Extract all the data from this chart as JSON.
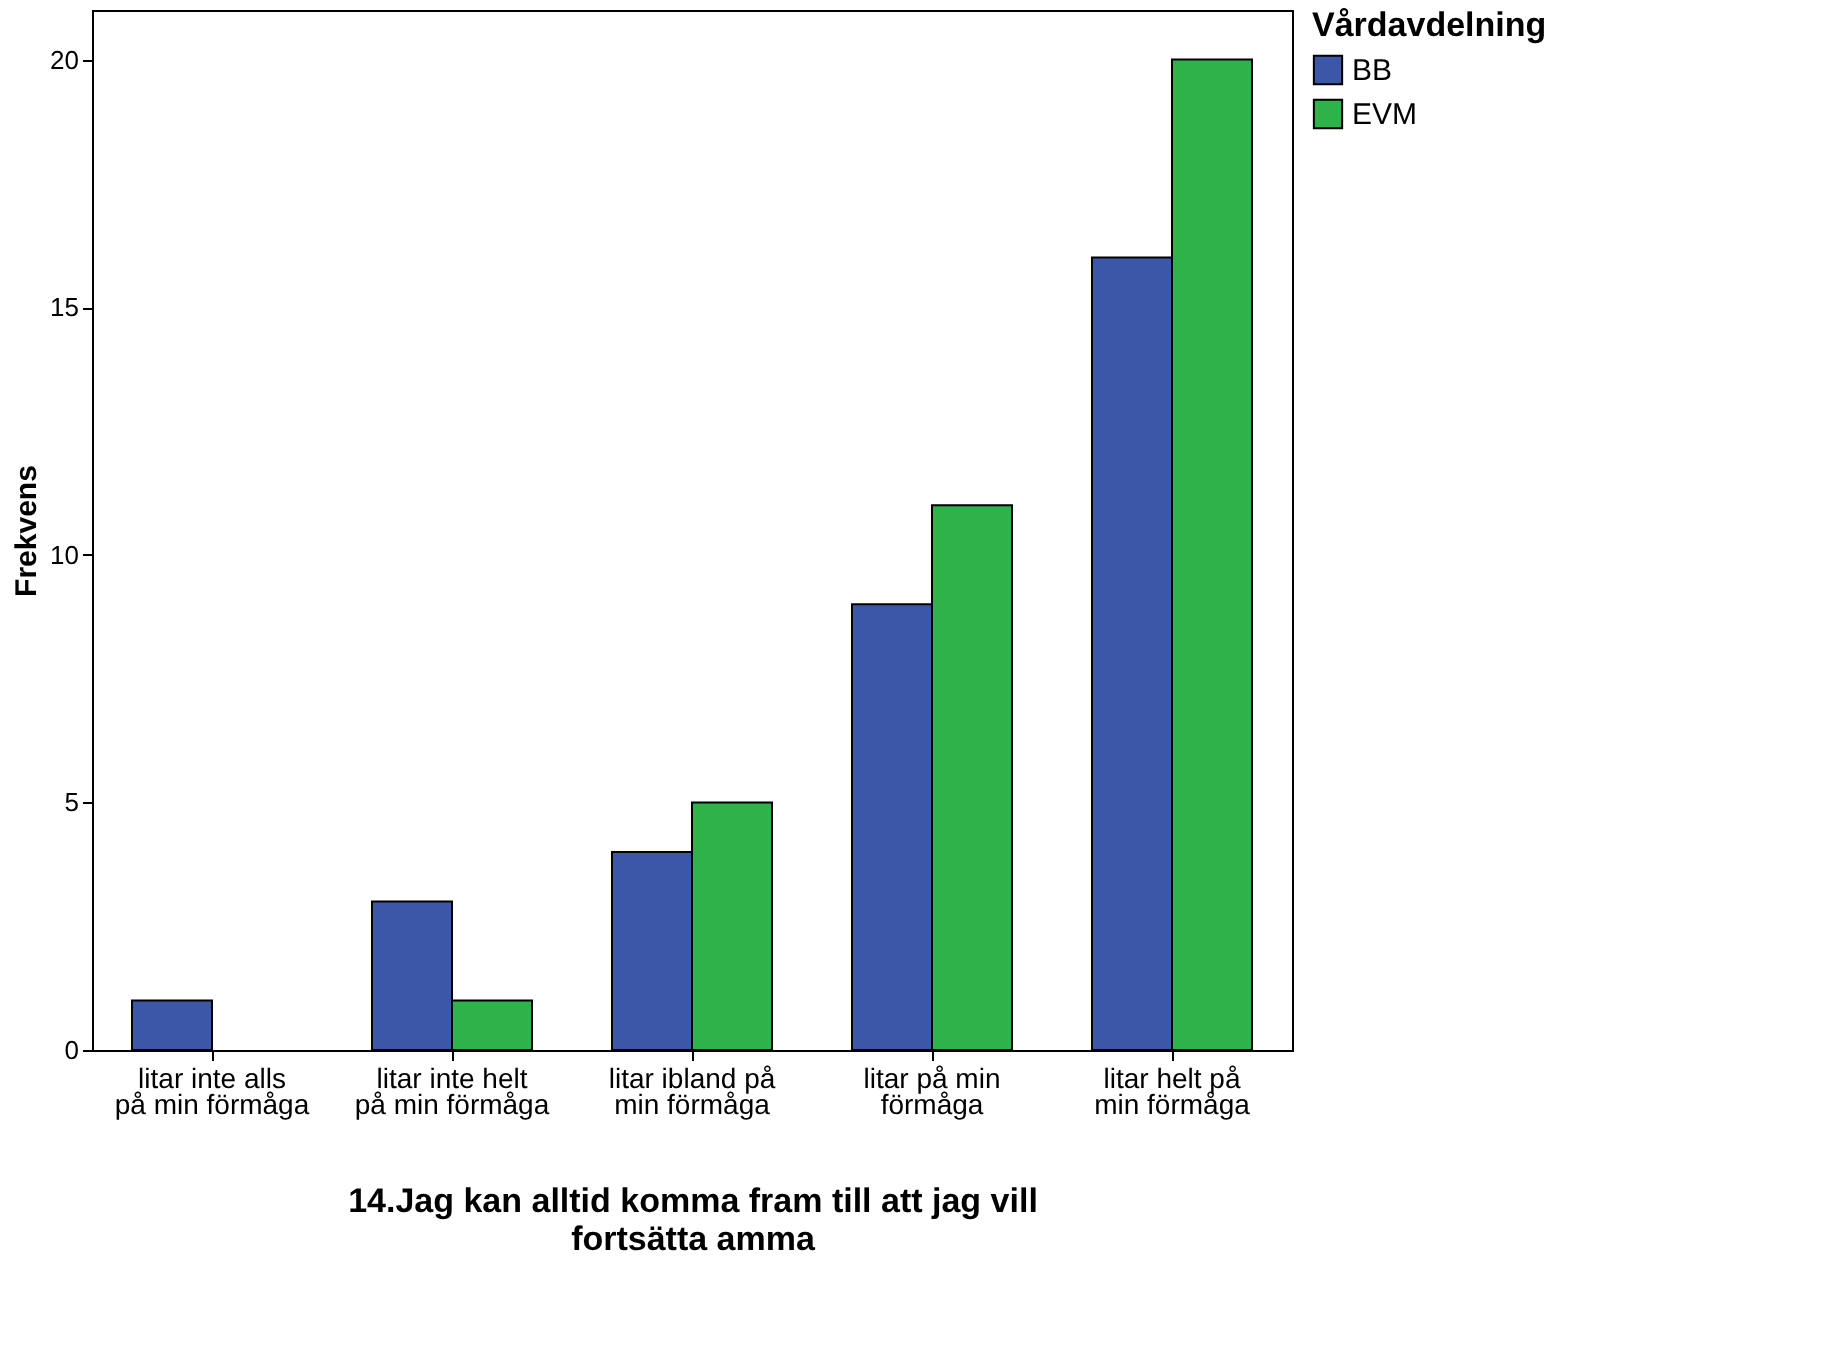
{
  "chart_data": {
    "type": "bar",
    "xlabel": "14.Jag kan alltid komma fram till att jag vill fortsätta amma",
    "ylabel": "Frekvens",
    "legend_title": "Vårdavdelning",
    "categories": [
      "litar inte alls på min förmåga",
      "litar inte helt på min förmåga",
      "litar ibland på min förmåga",
      "litar på min förmåga",
      "litar helt på min förmåga"
    ],
    "series": [
      {
        "name": "BB",
        "color": "#3c56a8",
        "values": [
          1,
          3,
          4,
          9,
          16
        ]
      },
      {
        "name": "EVM",
        "color": "#2db34a",
        "values": [
          0,
          1,
          5,
          11,
          20
        ]
      }
    ],
    "ylim": [
      0,
      21
    ],
    "yticks": [
      0,
      5,
      10,
      15,
      20
    ],
    "grid": false,
    "legend": "top right"
  }
}
